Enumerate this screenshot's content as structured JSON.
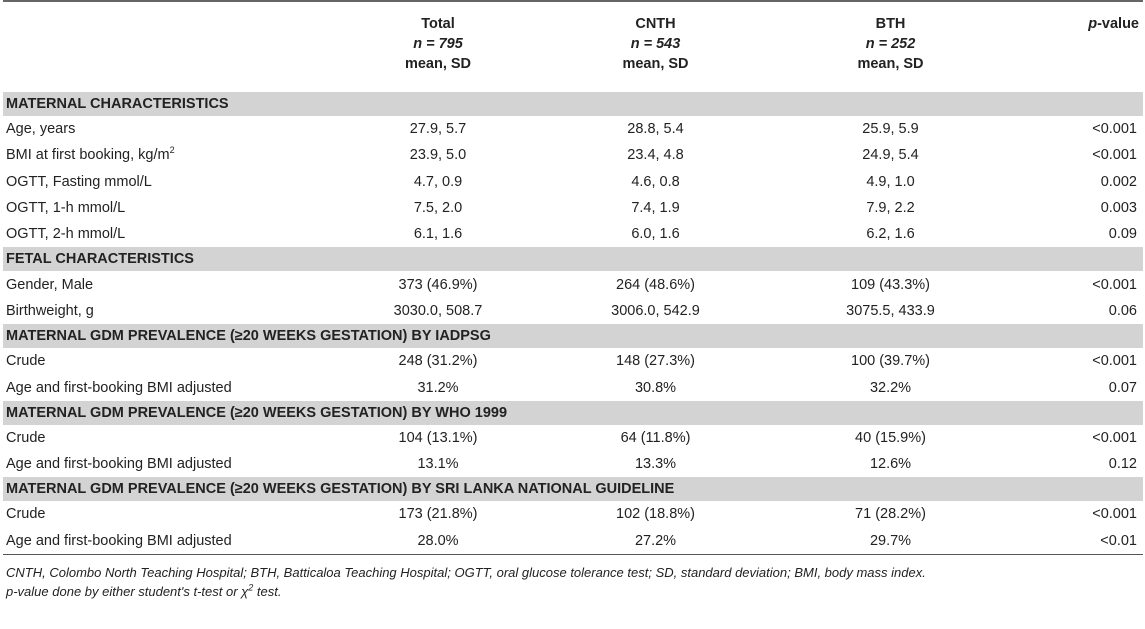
{
  "header": {
    "total": {
      "title": "Total",
      "n": "n = 795",
      "stat": "mean, SD"
    },
    "cnth": {
      "title": "CNTH",
      "n": "n = 543",
      "stat": "mean, SD"
    },
    "bth": {
      "title": "BTH",
      "n": "n = 252",
      "stat": "mean, SD"
    },
    "pvalue": {
      "italic": "p",
      "rest": "-value"
    }
  },
  "sections": [
    {
      "title": "MATERNAL CHARACTERISTICS"
    },
    {
      "title": "FETAL CHARACTERISTICS"
    },
    {
      "title": "MATERNAL GDM PREVALENCE (≥20 WEEKS GESTATION) BY IADPSG"
    },
    {
      "title": "MATERNAL GDM PREVALENCE (≥20 WEEKS GESTATION) BY WHO 1999"
    },
    {
      "title": "MATERNAL GDM PREVALENCE (≥20 WEEKS GESTATION) BY SRI LANKA NATIONAL GUIDELINE"
    }
  ],
  "rows": {
    "age": {
      "label": "Age, years",
      "total": "27.9, 5.7",
      "cnth": "28.8, 5.4",
      "bth": "25.9, 5.9",
      "p": "<0.001"
    },
    "bmi": {
      "label": "BMI at first booking, kg/m",
      "sup": "2",
      "total": "23.9, 5.0",
      "cnth": "23.4, 4.8",
      "bth": "24.9, 5.4",
      "p": "<0.001"
    },
    "ogtt_f": {
      "label": "OGTT, Fasting mmol/L",
      "total": "4.7, 0.9",
      "cnth": "4.6, 0.8",
      "bth": "4.9, 1.0",
      "p": "0.002"
    },
    "ogtt_1": {
      "label": "OGTT, 1-h mmol/L",
      "total": "7.5, 2.0",
      "cnth": "7.4, 1.9",
      "bth": "7.9, 2.2",
      "p": "0.003"
    },
    "ogtt_2": {
      "label": "OGTT, 2-h mmol/L",
      "total": "6.1, 1.6",
      "cnth": "6.0, 1.6",
      "bth": "6.2, 1.6",
      "p": "0.09"
    },
    "gender": {
      "label": "Gender, Male",
      "total": "373 (46.9%)",
      "cnth": "264 (48.6%)",
      "bth": "109 (43.3%)",
      "p": "<0.001"
    },
    "bw": {
      "label": "Birthweight, g",
      "total": "3030.0, 508.7",
      "cnth": "3006.0, 542.9",
      "bth": "3075.5, 433.9",
      "p": "0.06"
    },
    "iad_crude": {
      "label": "Crude",
      "total": "248 (31.2%)",
      "cnth": "148 (27.3%)",
      "bth": "100 (39.7%)",
      "p": "<0.001"
    },
    "iad_adj": {
      "label": "Age and first-booking BMI adjusted",
      "total": "31.2%",
      "cnth": "30.8%",
      "bth": "32.2%",
      "p": "0.07"
    },
    "who_crude": {
      "label": "Crude",
      "total": "104 (13.1%)",
      "cnth": "64 (11.8%)",
      "bth": "40 (15.9%)",
      "p": "<0.001"
    },
    "who_adj": {
      "label": "Age and first-booking BMI adjusted",
      "total": "13.1%",
      "cnth": "13.3%",
      "bth": "12.6%",
      "p": "0.12"
    },
    "sl_crude": {
      "label": "Crude",
      "total": "173 (21.8%)",
      "cnth": "102 (18.8%)",
      "bth": "71 (28.2%)",
      "p": "<0.001"
    },
    "sl_adj": {
      "label": "Age and first-booking BMI adjusted",
      "total": "28.0%",
      "cnth": "27.2%",
      "bth": "29.7%",
      "p": "<0.01"
    }
  },
  "footnote": {
    "line1": "CNTH, Colombo North Teaching Hospital; BTH, Batticaloa Teaching Hospital; OGTT, oral glucose tolerance test; SD, standard deviation; BMI, body mass index.",
    "line2_a": "p-value done by either student's t-test or χ",
    "line2_sup": "2",
    "line2_b": " test."
  }
}
